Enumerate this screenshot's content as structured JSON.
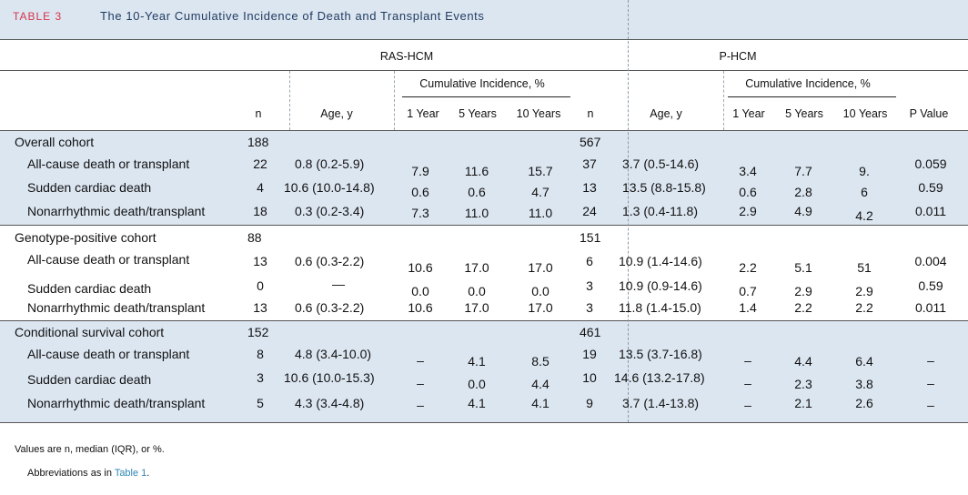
{
  "table": {
    "label": "TABLE 3",
    "title": "The 10-Year Cumulative Incidence of Death and Transplant Events"
  },
  "groups": [
    "RAS-HCM",
    "P-HCM"
  ],
  "subheader": "Cumulative Incidence, %",
  "columns": {
    "n": "n",
    "age": "Age, y",
    "y1": "1 Year",
    "y5": "5 Years",
    "y10": "10 Years",
    "p": "P Value"
  },
  "cohorts": [
    {
      "name": "Overall cohort",
      "ras_n": "188",
      "phcm_n": "567",
      "rows": [
        {
          "label": "All-cause death or transplant",
          "ras": [
            "22",
            "0.8 (0.2-5.9)",
            "7.9",
            "11.6",
            "15.7"
          ],
          "phcm": [
            "37",
            "3.7 (0.5-14.6)",
            "3.4",
            "7.7",
            "9."
          ],
          "p": "0.059"
        },
        {
          "label": "Sudden cardiac death",
          "ras": [
            "4",
            "10.6 (10.0-14.8)",
            "0.6",
            "0.6",
            "4.7"
          ],
          "phcm": [
            "13",
            "13.5 (8.8-15.8)",
            "0.6",
            "2.8",
            "6"
          ],
          "p": "0.59"
        },
        {
          "label": "Nonarrhythmic death/transplant",
          "ras": [
            "18",
            "0.3 (0.2-3.4)",
            "7.3",
            "11.0",
            "11.0"
          ],
          "phcm": [
            "24",
            "1.3 (0.4-11.8)",
            "2.9",
            "4.9",
            "4.2"
          ],
          "p": "0.011"
        }
      ]
    },
    {
      "name": "Genotype-positive cohort",
      "ras_n": "88",
      "phcm_n": "151",
      "rows": [
        {
          "label": "All-cause death or transplant",
          "ras": [
            "13",
            "0.6 (0.3-2.2)",
            "10.6",
            "17.0",
            "17.0"
          ],
          "phcm": [
            "6",
            "10.9 (1.4-14.6)",
            "2.2",
            "5.1",
            "51"
          ],
          "p": "0.004"
        },
        {
          "label": "Sudden cardiac death",
          "ras": [
            "0",
            "—",
            "0.0",
            "0.0",
            "0.0"
          ],
          "phcm": [
            "3",
            "10.9 (0.9-14.6)",
            "0.7",
            "2.9",
            "2.9"
          ],
          "p": "0.59"
        },
        {
          "label": "Nonarrhythmic death/transplant",
          "ras": [
            "13",
            "0.6 (0.3-2.2)",
            "10.6",
            "17.0",
            "17.0"
          ],
          "phcm": [
            "3",
            "11.8 (1.4-15.0)",
            "1.4",
            "2.2",
            "2.2"
          ],
          "p": "0.011"
        }
      ]
    },
    {
      "name": "Conditional survival cohort",
      "ras_n": "152",
      "phcm_n": "461",
      "rows": [
        {
          "label": "All-cause death or transplant",
          "ras": [
            "8",
            "4.8 (3.4-10.0)",
            "–",
            "4.1",
            "8.5"
          ],
          "phcm": [
            "19",
            "13.5 (3.7-16.8)",
            "–",
            "4.4",
            "6.4"
          ],
          "p": "–"
        },
        {
          "label": "Sudden cardiac death",
          "ras": [
            "3",
            "10.6 (10.0-15.3)",
            "–",
            "0.0",
            "4.4"
          ],
          "phcm": [
            "10",
            "14.6 (13.2-17.8)",
            "–",
            "2.3",
            "3.8"
          ],
          "p": "–"
        },
        {
          "label": "Nonarrhythmic death/transplant",
          "ras": [
            "5",
            "4.3 (3.4-4.8)",
            "–",
            "4.1",
            "4.1"
          ],
          "phcm": [
            "9",
            "3.7 (1.4-13.8)",
            "–",
            "2.1",
            "2.6"
          ],
          "p": "–"
        }
      ]
    }
  ],
  "footnotes": {
    "line1": "Values are n, median (IQR), or %.",
    "line2_prefix": "Abbreviations as in",
    "line2_link": "Table 1",
    "line2_suffix": "."
  }
}
